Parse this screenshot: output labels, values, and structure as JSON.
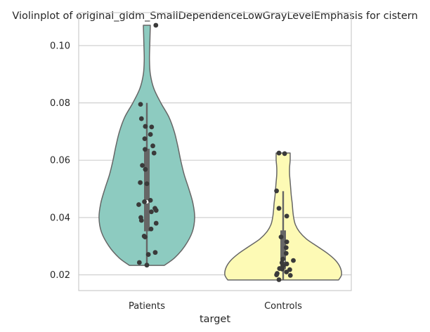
{
  "chart_data": {
    "type": "violin",
    "title": "Violinplot of original_gldm_SmallDependenceLowGrayLevelEmphasis for cistern",
    "xlabel": "target",
    "ylabel": "",
    "categories": [
      "Patients",
      "Controls"
    ],
    "ylim": [
      0.0145,
      0.1115
    ],
    "yticks": [
      0.02,
      0.04,
      0.06,
      0.08,
      0.1
    ],
    "ytick_labels": [
      "0.02",
      "0.04",
      "0.06",
      "0.08",
      "0.10"
    ],
    "grid": "horizontal",
    "series": [
      {
        "category": "Patients",
        "color": "#8dcbc0",
        "min": 0.0233,
        "max": 0.1071,
        "q1": 0.0352,
        "median": 0.0455,
        "q3": 0.064,
        "whisker_low": 0.0233,
        "whisker_high": 0.08,
        "density": [
          [
            0.0233,
            0.3
          ],
          [
            0.026,
            0.48
          ],
          [
            0.03,
            0.65
          ],
          [
            0.035,
            0.78
          ],
          [
            0.04,
            0.82
          ],
          [
            0.045,
            0.79
          ],
          [
            0.05,
            0.72
          ],
          [
            0.055,
            0.64
          ],
          [
            0.06,
            0.58
          ],
          [
            0.065,
            0.53
          ],
          [
            0.07,
            0.47
          ],
          [
            0.075,
            0.38
          ],
          [
            0.08,
            0.24
          ],
          [
            0.085,
            0.12
          ],
          [
            0.09,
            0.06
          ],
          [
            0.095,
            0.045
          ],
          [
            0.1,
            0.05
          ],
          [
            0.1071,
            0.06
          ]
        ],
        "points": [
          0.1071,
          0.0795,
          0.0745,
          0.0718,
          0.0716,
          0.069,
          0.0675,
          0.065,
          0.0638,
          0.0625,
          0.0582,
          0.0568,
          0.0522,
          0.0518,
          0.046,
          0.0455,
          0.0445,
          0.0432,
          0.0425,
          0.042,
          0.04,
          0.039,
          0.038,
          0.036,
          0.0335,
          0.0332,
          0.0278,
          0.0271,
          0.0243,
          0.0234
        ],
        "jitter": [
          0.3,
          -0.21,
          -0.18,
          -0.05,
          0.16,
          0.12,
          -0.07,
          0.2,
          -0.06,
          0.24,
          -0.15,
          -0.05,
          -0.22,
          0.0,
          0.12,
          -0.08,
          -0.27,
          0.27,
          0.31,
          0.15,
          -0.2,
          -0.18,
          0.31,
          0.14,
          -0.09,
          -0.06,
          0.28,
          0.05,
          -0.25,
          0.0
        ]
      },
      {
        "category": "Controls",
        "color": "#fdfab5",
        "min": 0.0182,
        "max": 0.0625,
        "q1": 0.022,
        "median": 0.025,
        "q3": 0.0355,
        "whisker_low": 0.0182,
        "whisker_high": 0.0492,
        "density": [
          [
            0.0182,
            0.95
          ],
          [
            0.02,
            1.0
          ],
          [
            0.0225,
            0.98
          ],
          [
            0.025,
            0.9
          ],
          [
            0.0275,
            0.76
          ],
          [
            0.03,
            0.58
          ],
          [
            0.0325,
            0.4
          ],
          [
            0.035,
            0.28
          ],
          [
            0.0375,
            0.21
          ],
          [
            0.04,
            0.18
          ],
          [
            0.0425,
            0.165
          ],
          [
            0.045,
            0.155
          ],
          [
            0.0475,
            0.14
          ],
          [
            0.05,
            0.13
          ],
          [
            0.0525,
            0.12
          ],
          [
            0.055,
            0.11
          ],
          [
            0.0575,
            0.11
          ],
          [
            0.06,
            0.12
          ],
          [
            0.0625,
            0.12
          ]
        ],
        "points": [
          0.0625,
          0.0623,
          0.0493,
          0.0432,
          0.0405,
          0.0332,
          0.0315,
          0.0295,
          0.0275,
          0.0255,
          0.025,
          0.0242,
          0.0238,
          0.0232,
          0.0222,
          0.022,
          0.0218,
          0.021,
          0.0205,
          0.02,
          0.0198,
          0.0183
        ],
        "jitter": [
          -0.14,
          0.05,
          -0.22,
          -0.14,
          0.12,
          -0.07,
          0.12,
          0.1,
          0.1,
          -0.01,
          0.34,
          -0.04,
          0.12,
          0.0,
          -0.12,
          -0.03,
          0.22,
          0.11,
          -0.2,
          -0.22,
          0.24,
          -0.14
        ]
      }
    ]
  }
}
